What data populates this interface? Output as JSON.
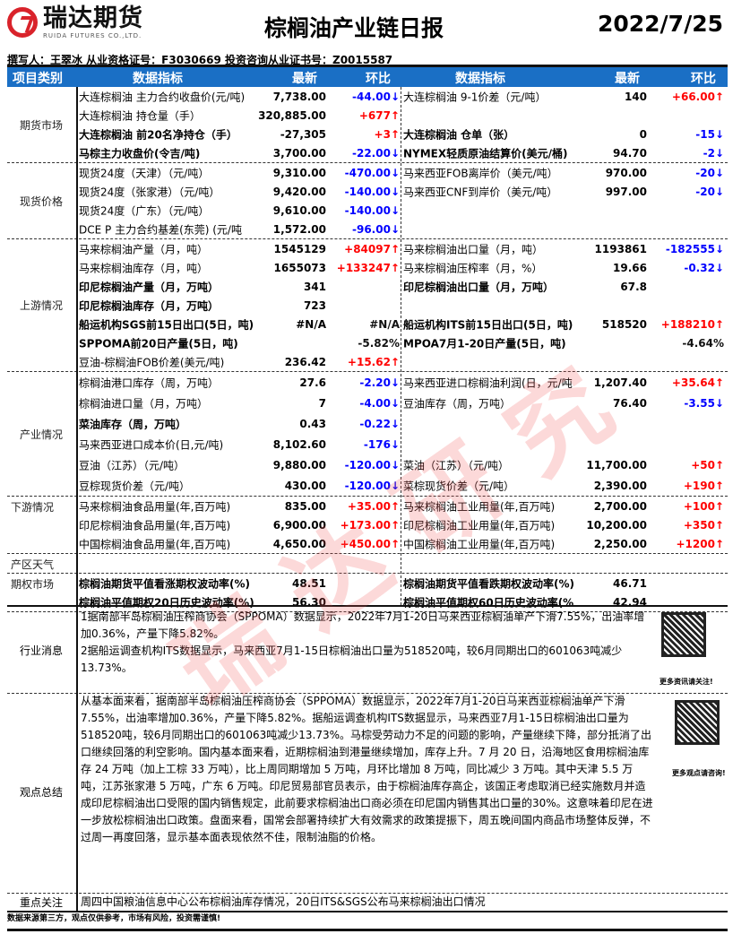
{
  "logo": {
    "cn": "瑞达期货",
    "en": "RUIDA FUTURES CO.,LTD."
  },
  "title": "棕榈油产业链日报",
  "date": "2022/7/25",
  "author": "撰写人：王翠冰   从业资格证号：F3030669   投资咨询从业证书号：Z0015587",
  "header": {
    "category": "项目类别",
    "indicator": "数据指标",
    "latest": "最新",
    "change": "环比",
    "indicator2": "数据指标",
    "latest2": "最新",
    "change2": "环比"
  },
  "watermark": "瑞达研究",
  "colors": {
    "header": "#1a6fc5",
    "up": "#ff0000",
    "down": "#0000ff"
  },
  "sections": [
    {
      "category": "期货市场",
      "rows": [
        [
          "大连棕榈油 主力合约收盘价(元/吨)",
          "7,738.00",
          "-44.00↓",
          "大连棕榈油 9-1价差（元/吨）",
          "140",
          "+66.00↑",
          0
        ],
        [
          "大连棕榈油 持仓量（手）",
          "320,885.00",
          "+677↑",
          "",
          "",
          "",
          0
        ],
        [
          "大连棕榈油 前20名净持仓（手）",
          "-27,305",
          "+3↑",
          "大连棕榈油 仓单（张）",
          "0",
          "-15↓",
          1
        ],
        [
          "马棕主力收盘价(令吉/吨)",
          "3,700.00",
          "-22.00↓",
          "NYMEX轻质原油结算价(美元/桶)",
          "94.70",
          "-2↓",
          1
        ]
      ]
    },
    {
      "category": "现货价格",
      "rows": [
        [
          "现货24度（天津）（元/吨）",
          "9,310.00",
          "-470.00↓",
          "马来西亚FOB离岸价（美元/吨）",
          "970.00",
          "-20↓",
          0
        ],
        [
          "现货24度（张家港）（元/吨）",
          "9,420.00",
          "-140.00↓",
          "马来西亚CNF到岸价（美元/吨）",
          "997.00",
          "-20↓",
          0
        ],
        [
          "现货24度（广东）（元/吨）",
          "9,610.00",
          "-140.00↓",
          "",
          "",
          "",
          0
        ],
        [
          "DCE P 主力合约基差(东莞)  (元/吨",
          "1,572.00",
          "-96.00↓",
          "",
          "",
          "",
          0
        ]
      ]
    },
    {
      "category": "上游情况",
      "rows": [
        [
          "马来棕榈油产量（月，吨）",
          "1545129",
          "+84097↑",
          "马来棕榈油出口量（月，吨）",
          "1193861",
          "-182555↓",
          0
        ],
        [
          "马来棕榈油库存（月，吨）",
          "1655073",
          "+133247↑",
          "马来棕榈油压榨率（月，%）",
          "19.66",
          "-0.32↓",
          0
        ],
        [
          "印尼棕榈油产量（月，万吨）",
          "341",
          "",
          "印尼棕榈油出口量（月，万吨）",
          "67.8",
          "",
          1
        ],
        [
          "印尼棕榈油库存（月，万吨）",
          "723",
          "",
          "",
          "",
          "",
          1
        ],
        [
          "船运机构SGS前15日出口(5日，吨)",
          "#N/A",
          "#N/A",
          "船运机构ITS前15日出口(5日，吨)",
          "518520",
          "+188210↑",
          1
        ],
        [
          "SPPOMA前20日产量(5日，吨)",
          "",
          "-5.82%",
          "MPOA7月1-20日产量(5日，吨)",
          "",
          "-4.64%",
          1
        ],
        [
          "豆油-棕榈油FOB价差(美元/吨)",
          "236.42",
          "+15.62↑",
          "",
          "",
          "",
          0
        ]
      ]
    },
    {
      "category": "产业情况",
      "rowh": 23,
      "rows": [
        [
          "棕榈油港口库存（周，万吨）",
          "27.6",
          "-2.20↓",
          "马来西亚进口棕榈油利润(日，元/吨",
          "1,207.40",
          "+35.64↑",
          0
        ],
        [
          "棕榈油进口量（月，万吨）",
          "7",
          "-4.00↓",
          "豆油库存（周，万吨）",
          "76.40",
          "-3.55↓",
          0
        ],
        [
          "菜油库存（周，万吨）",
          "0.43",
          "-0.22↓",
          "",
          "",
          "",
          1
        ],
        [
          "马来西亚进口成本价(日,元/吨)",
          "8,102.60",
          "-176↓",
          "",
          "",
          "",
          0
        ],
        [
          "豆油（江苏）（元/吨）",
          "9,880.00",
          "-120.00↓",
          "菜油（江苏）（元/吨）",
          "11,700.00",
          "+50↑",
          0
        ],
        [
          "豆棕现货价差（元/吨）",
          "430.00",
          "-120.00↓",
          "菜棕现货价差（元/吨）",
          "2,390.00",
          "+190↑",
          0
        ]
      ]
    },
    {
      "category": "下游情况",
      "rows": [
        [
          "马来棕榈油食品用量(年,百万吨)",
          "835.00",
          "+35.00↑",
          "马来棕榈油工业用量(年,百万吨)",
          "2,700.00",
          "+100↑",
          0
        ],
        [
          "印尼棕榈油食品用量(年,百万吨)",
          "6,900.00",
          "+173.00↑",
          "印尼棕榈油工业用量(年,百万吨)",
          "10,200.00",
          "+350↑",
          0
        ],
        [
          "中国棕榈油食品用量(年,百万吨)",
          "4,650.00",
          "+450.00↑",
          "中国棕榈油工业用量(年,百万吨)",
          "2,250.00",
          "+1200↑",
          0
        ]
      ]
    },
    {
      "category": "产区天气",
      "rows": [
        [
          "",
          "",
          "",
          "",
          "",
          "",
          0
        ]
      ]
    },
    {
      "category": "期权市场",
      "rows": [
        [
          "棕榈油期货平值看涨期权波动率(%)",
          "48.51",
          "",
          "棕榈油期货平值看跌期权波动率(%)",
          "46.71",
          "",
          1
        ],
        [
          "棕榈油平值期权20日历史波动率(%)",
          "56.30",
          "",
          "棕榈油平值期权60日历史波动率(%)",
          "42.94",
          "",
          1
        ]
      ]
    }
  ],
  "news": {
    "category": "行业消息",
    "text": "1据南部半岛棕榈油压榨商协会（SPPOMA）数据显示，2022年7月1-20日马来西亚棕榈油单产下滑7.55%，出油率增加0.36%，产量下降5.82%。\n2据船运调查机构ITS数据显示，马来西亚7月1-15日棕榈油出口量为518520吨，较6月同期出口的601063吨减少13.73%。",
    "qr_caption": "更多资讯请关注!"
  },
  "views": {
    "category": "观点总结",
    "text": "从基本面来看，据南部半岛棕榈油压榨商协会（SPPOMA）数据显示，2022年7月1-20日马来西亚棕榈油单产下滑7.55%，出油率增加0.36%，产量下降5.82%。据船运调查机构ITS数据显示，马来西亚7月1-15日棕榈油出口量为518520吨，较6月同期出口的601063吨减少13.73%。马棕受劳动力不足的问题的影响，产量继续下降，部分抵消了出口继续回落的利空影响。国内基本面来看，近期棕榈油到港量继续增加，库存上升。7 月 20 日，沿海地区食用棕榈油库存 24 万吨（加上工棕 33 万吨），比上周同期增加 5 万吨，月环比增加 8 万吨，同比减少 3 万吨。其中天津 5.5 万吨，江苏张家港 5 万吨，广东 6 万吨。印尼贸易部官员表示，由于棕榈油库存高企，该国正考虑取消已经实施数月并造成印尼棕榈油出口受限的国内销售规定，此前要求棕榈油出口商必须在印尼国内销售其出口量的30%。这意味着印尼在进一步放松棕榈油出口政策。盘面来看，国常会部署持续扩大有效需求的政策提振下，周五晚间国内商品市场整体反弹，不过周一再度回落，显示基本面表现依然不佳，限制油脂的价格。",
    "qr_caption": "更多观点请咨询!"
  },
  "focus": {
    "category": "重点关注",
    "text": "周四中国粮油信息中心公布棕榈油库存情况，20日ITS&SGS公布马来棕榈油出口情况"
  },
  "footer": "数据来源第三方，观点仅供参考，市场有风险，投资需谨慎!"
}
